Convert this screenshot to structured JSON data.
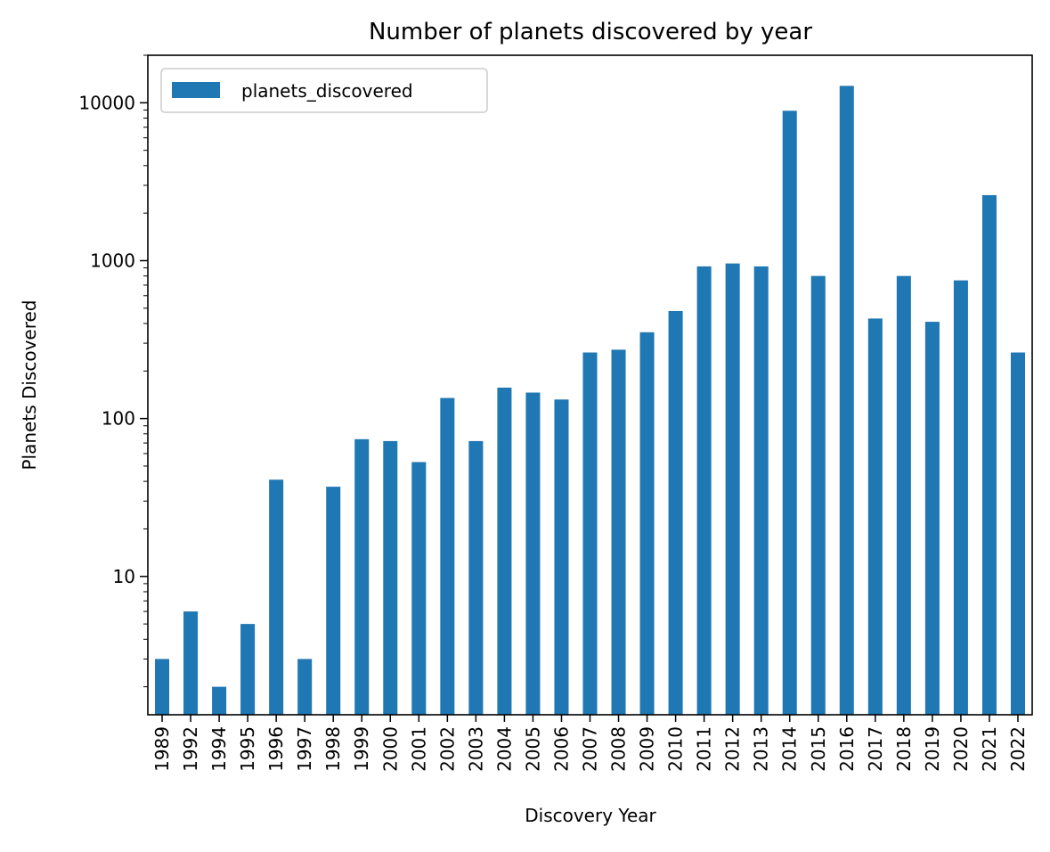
{
  "colors": {
    "bar": "#1f77b4",
    "axis": "#000000",
    "background": "#ffffff",
    "legend_border": "#cccccc"
  },
  "chart_data": {
    "type": "bar",
    "title": "Number of planets discovered by year",
    "xlabel": "Discovery Year",
    "ylabel": "Planets Discovered",
    "yscale": "log",
    "ylim": [
      1.33,
      20000
    ],
    "ytick_values": [
      10,
      100,
      1000,
      10000
    ],
    "ytick_labels": [
      "10",
      "100",
      "1000",
      "10000"
    ],
    "grid": false,
    "legend_position": "top-left",
    "categories": [
      "1989",
      "1992",
      "1994",
      "1995",
      "1996",
      "1997",
      "1998",
      "1999",
      "2000",
      "2001",
      "2002",
      "2003",
      "2004",
      "2005",
      "2006",
      "2007",
      "2008",
      "2009",
      "2010",
      "2011",
      "2012",
      "2013",
      "2014",
      "2015",
      "2016",
      "2017",
      "2018",
      "2019",
      "2020",
      "2021",
      "2022"
    ],
    "series": [
      {
        "name": "planets_discovered",
        "values": [
          3,
          6,
          2,
          5,
          41,
          3,
          37,
          74,
          72,
          53,
          135,
          72,
          157,
          146,
          132,
          262,
          273,
          352,
          480,
          920,
          960,
          920,
          8900,
          800,
          12800,
          430,
          800,
          410,
          750,
          2600,
          262
        ]
      }
    ]
  }
}
